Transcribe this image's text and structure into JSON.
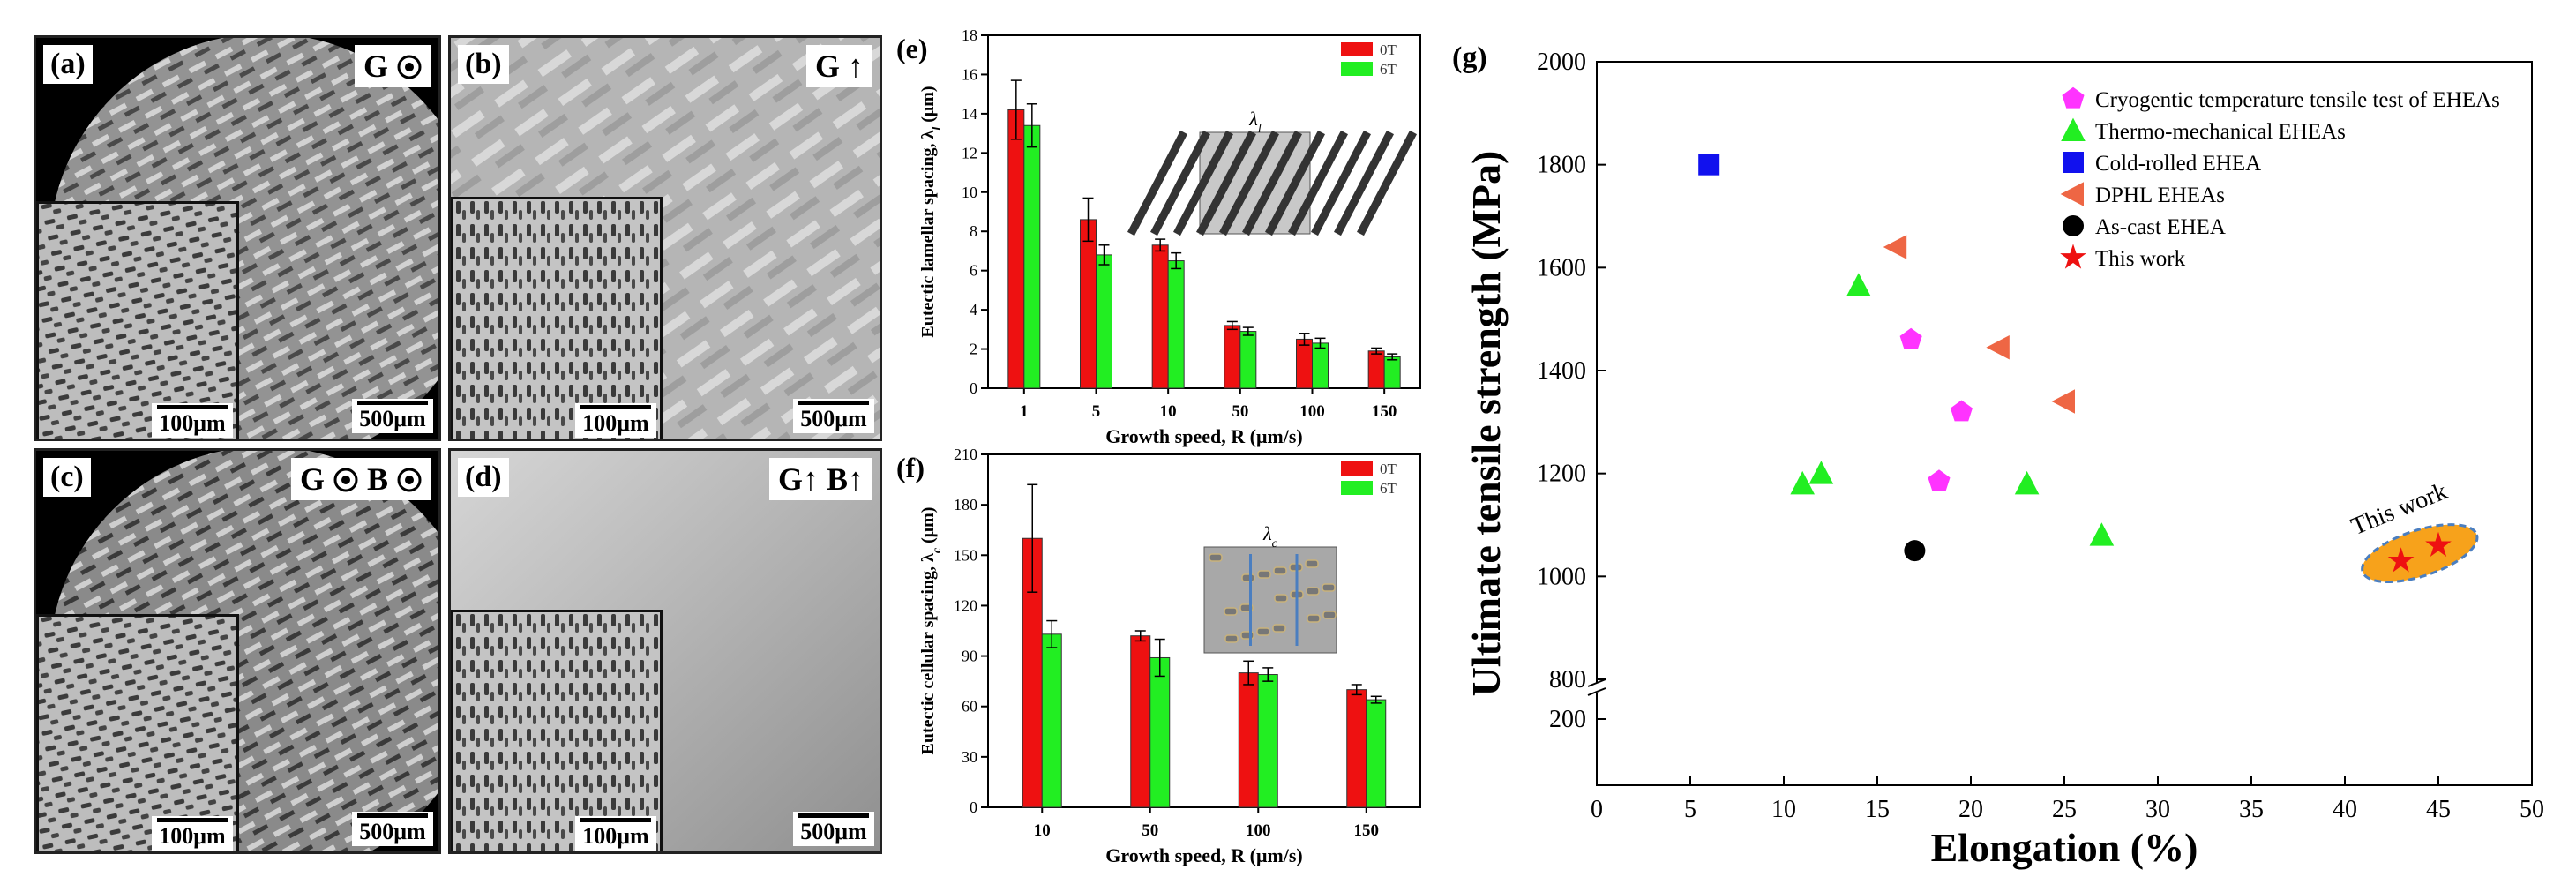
{
  "panels": {
    "a": {
      "label": "(a)",
      "badge": "G",
      "scale": "500μm",
      "inset_scale": "100μm"
    },
    "b": {
      "label": "(b)",
      "badge": "G",
      "scale": "500μm",
      "inset_scale": "100μm"
    },
    "c": {
      "label": "(c)",
      "badge": "G B",
      "scale": "500μm",
      "inset_scale": "100μm"
    },
    "d": {
      "label": "(d)",
      "badge": "G B",
      "scale": "500μm",
      "inset_scale": "100μm"
    }
  },
  "chart_data": [
    {
      "id": "e",
      "panel_label": "(e)",
      "type": "bar",
      "categories": [
        "1",
        "5",
        "10",
        "50",
        "100",
        "150"
      ],
      "series": [
        {
          "name": "0T",
          "color": "#ee1111",
          "values": [
            14.2,
            8.6,
            7.3,
            3.2,
            2.5,
            1.9
          ],
          "errors": [
            1.5,
            1.1,
            0.3,
            0.2,
            0.3,
            0.15
          ]
        },
        {
          "name": "6T",
          "color": "#22ee22",
          "values": [
            13.4,
            6.8,
            6.5,
            2.9,
            2.3,
            1.6
          ],
          "errors": [
            1.1,
            0.5,
            0.4,
            0.2,
            0.25,
            0.15
          ]
        }
      ],
      "ylim": [
        0,
        18
      ],
      "yticks": [
        0,
        2,
        4,
        6,
        8,
        10,
        12,
        14,
        16,
        18
      ],
      "xlabel": "Growth speed, R (μm/s)",
      "ylabel": "Eutectic lamellar spacing, λ",
      "ylabel_sub": "l",
      "ylabel_unit": "(μm)",
      "inset_label": "λ",
      "inset_label_sub": "l",
      "legend_position": "top-right"
    },
    {
      "id": "f",
      "panel_label": "(f)",
      "type": "bar",
      "categories": [
        "10",
        "50",
        "100",
        "150"
      ],
      "series": [
        {
          "name": "0T",
          "color": "#ee1111",
          "values": [
            160,
            102,
            80,
            70
          ],
          "errors": [
            32,
            3,
            7,
            3
          ]
        },
        {
          "name": "6T",
          "color": "#22ee22",
          "values": [
            103,
            89,
            79,
            64
          ],
          "errors": [
            8,
            11,
            4,
            2
          ]
        }
      ],
      "ylim": [
        0,
        210
      ],
      "yticks": [
        0,
        30,
        60,
        90,
        120,
        150,
        180,
        210
      ],
      "xlabel": "Growth speed, R (μm/s)",
      "ylabel": "Eutectic cellular spacing, λ",
      "ylabel_sub": "c",
      "ylabel_unit": "(μm)",
      "inset_label": "λ",
      "inset_label_sub": "c",
      "legend_position": "top-right"
    },
    {
      "id": "g",
      "panel_label": "(g)",
      "type": "scatter",
      "xlabel": "Elongation (%)",
      "ylabel": "Ultimate tensile strength (MPa)",
      "xlim": [
        0,
        50
      ],
      "xticks": [
        0,
        5,
        10,
        15,
        20,
        25,
        30,
        35,
        40,
        45,
        50
      ],
      "ylim_upper": [
        800,
        2000
      ],
      "yticks_upper": [
        800,
        1000,
        1200,
        1400,
        1600,
        1800,
        2000
      ],
      "yticks_lower": [
        200
      ],
      "axis_break": true,
      "legend_position": "top-right",
      "series": [
        {
          "name": "Cryogentic temperature tensile test of EHEAs",
          "marker": "pentagon",
          "color": "#ff33ff",
          "points": [
            [
              16.8,
              1460
            ],
            [
              19.5,
              1320
            ],
            [
              18.3,
              1185
            ]
          ]
        },
        {
          "name": "Thermo-mechanical EHEAs",
          "marker": "triangle",
          "color": "#22ee22",
          "points": [
            [
              14,
              1565
            ],
            [
              11,
              1180
            ],
            [
              12,
              1200
            ],
            [
              23,
              1180
            ],
            [
              27,
              1080
            ]
          ]
        },
        {
          "name": "Cold-rolled EHEA",
          "marker": "square",
          "color": "#1111ee",
          "points": [
            [
              6,
              1800
            ]
          ]
        },
        {
          "name": "DPHL EHEAs",
          "marker": "triangle-left",
          "color": "#ee6644",
          "points": [
            [
              16,
              1640
            ],
            [
              21.5,
              1445
            ],
            [
              25,
              1340
            ]
          ]
        },
        {
          "name": "As-cast EHEA",
          "marker": "circle",
          "color": "#000000",
          "points": [
            [
              17,
              1050
            ]
          ]
        },
        {
          "name": "This work",
          "marker": "star",
          "color": "#ee1111",
          "points": [
            [
              43,
              1030
            ],
            [
              45,
              1060
            ]
          ]
        }
      ],
      "annotation": "This work"
    }
  ]
}
